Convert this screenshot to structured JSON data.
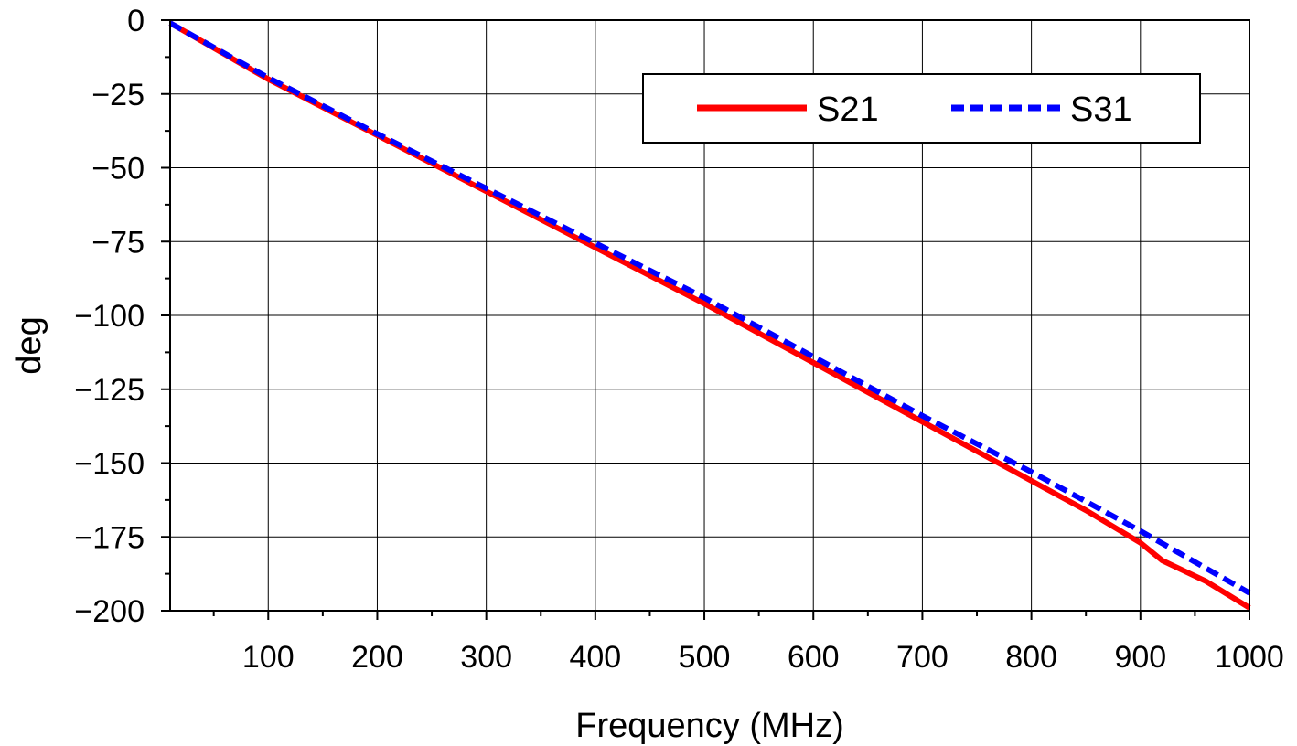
{
  "chart_data": {
    "type": "line",
    "xlabel": "Frequency (MHz)",
    "ylabel": "deg",
    "xlim": [
      10,
      1000
    ],
    "ylim": [
      -200,
      0
    ],
    "x_ticks": [
      100,
      200,
      300,
      400,
      500,
      600,
      700,
      800,
      900,
      1000
    ],
    "y_ticks": [
      0,
      -25,
      -50,
      -75,
      -100,
      -125,
      -150,
      -175,
      -200
    ],
    "grid": true,
    "legend_position": "top-right",
    "series": [
      {
        "name": "S21",
        "color": "#ff0000",
        "style": "solid",
        "x": [
          10,
          100,
          200,
          300,
          400,
          500,
          600,
          700,
          800,
          850,
          900,
          920,
          960,
          1000
        ],
        "y": [
          -1,
          -20,
          -39,
          -58,
          -77,
          -96,
          -116,
          -136,
          -156,
          -166,
          -177,
          -183,
          -190,
          -199
        ]
      },
      {
        "name": "S31",
        "color": "#0000ff",
        "style": "dashed",
        "x": [
          10,
          100,
          200,
          300,
          400,
          500,
          600,
          700,
          800,
          900,
          1000
        ],
        "y": [
          -1,
          -19.5,
          -38.5,
          -57,
          -75.5,
          -94,
          -114,
          -134,
          -153,
          -173,
          -194
        ]
      }
    ]
  }
}
